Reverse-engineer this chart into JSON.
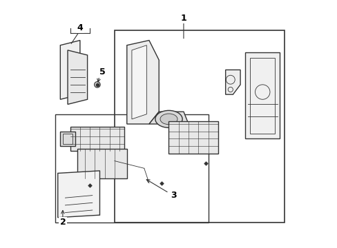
{
  "background_color": "#ffffff",
  "line_color": "#333333",
  "label_color": "#000000",
  "fig_width": 4.89,
  "fig_height": 3.6,
  "dpi": 100
}
